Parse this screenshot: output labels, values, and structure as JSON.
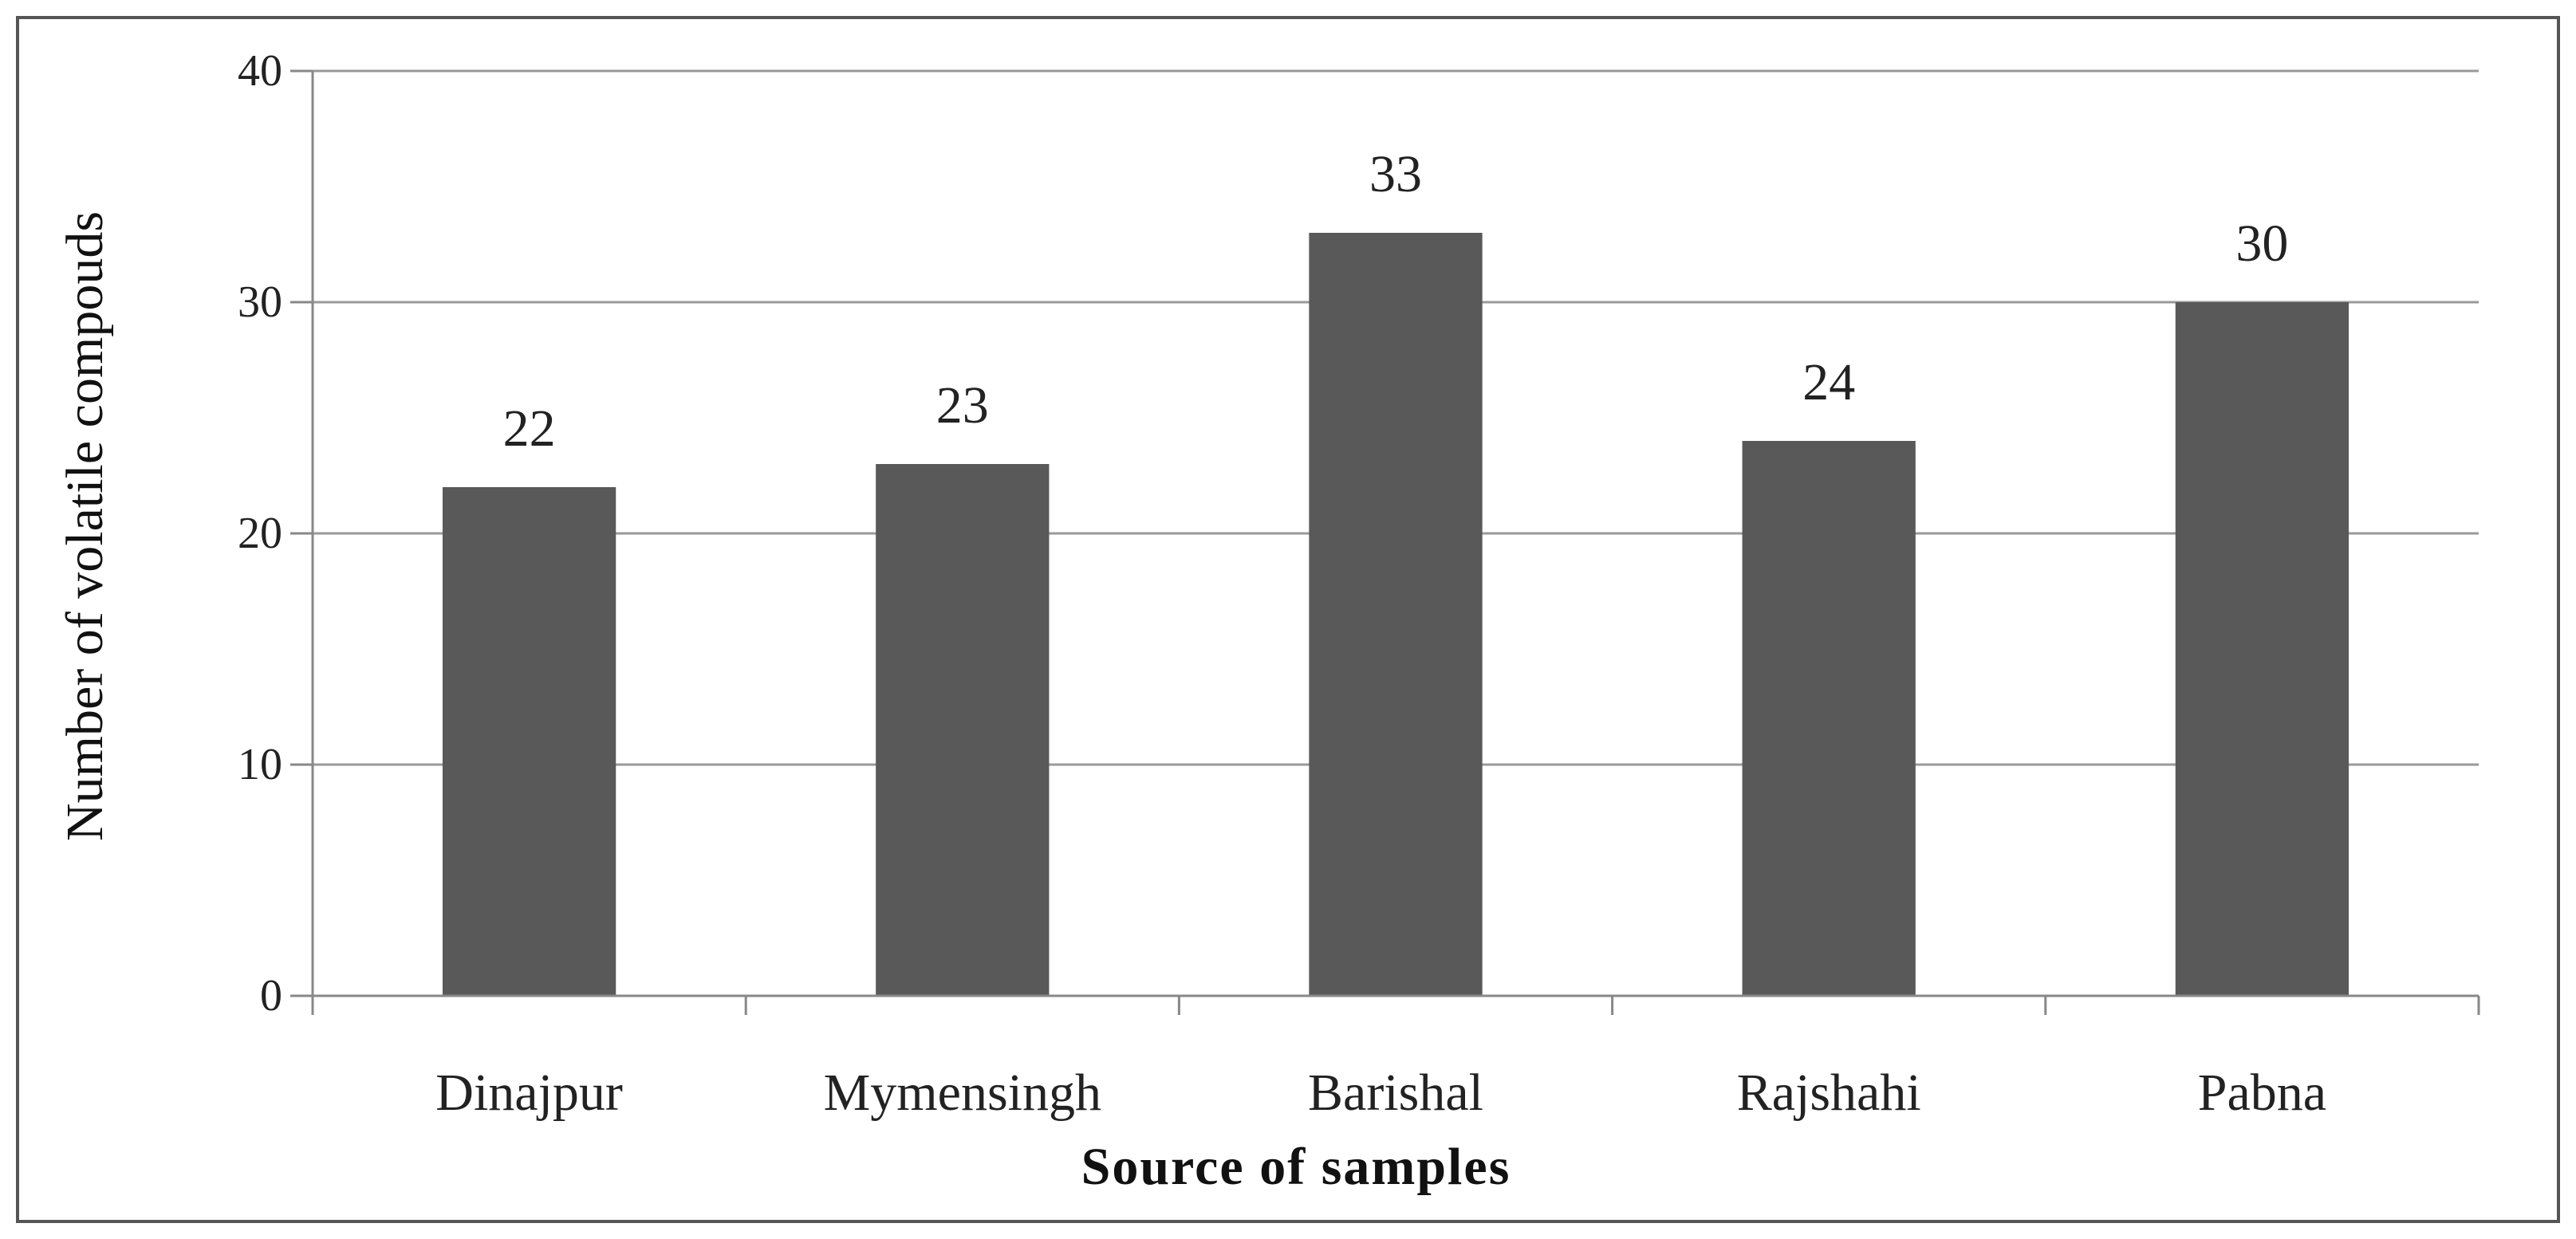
{
  "chart_data": {
    "type": "bar",
    "categories": [
      "Dinajpur",
      "Mymensingh",
      "Barishal",
      "Rajshahi",
      "Pabna"
    ],
    "values": [
      22,
      23,
      33,
      24,
      30
    ],
    "title": "",
    "xlabel": "Source of samples",
    "ylabel": "Number of volatile compouds",
    "ylim": [
      0,
      40
    ],
    "yticks": [
      0,
      10,
      20,
      30,
      40
    ],
    "grid": true,
    "legend": "none",
    "data_labels": true,
    "colors": {
      "bar": "#595959",
      "grid": "#9a9a9a",
      "axis": "#888888",
      "text": "#222222"
    }
  }
}
